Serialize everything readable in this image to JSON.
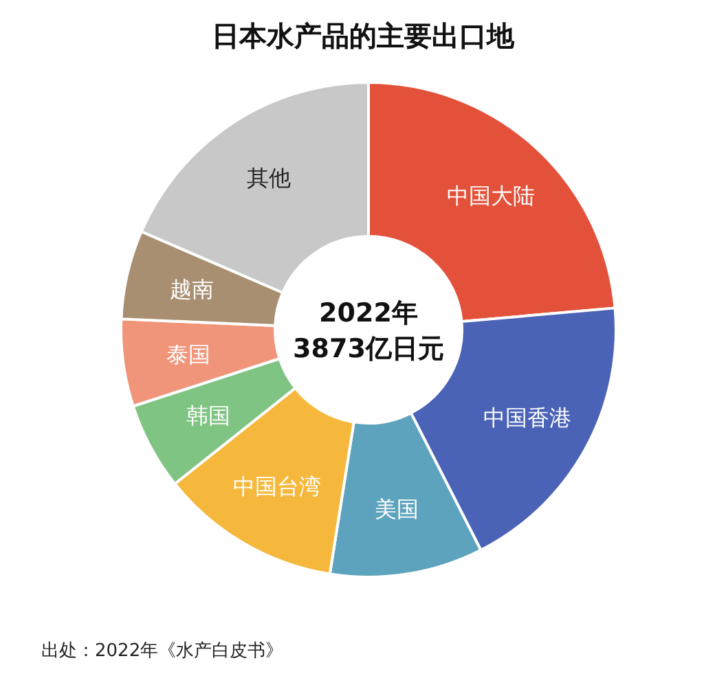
{
  "chart_data": {
    "type": "donut",
    "title": "日本水产品的主要出口地",
    "categories": [
      "中国大陆",
      "中国香港",
      "美国",
      "中国台湾",
      "韩国",
      "泰国",
      "越南",
      "其他"
    ],
    "values": [
      23.6,
      18.9,
      10,
      11.8,
      5.7,
      5.7,
      5.8,
      18.5
    ],
    "colors": [
      "#e4513a",
      "#4a63b6",
      "#5ea3bd",
      "#f5b83d",
      "#7fc483",
      "#f0957a",
      "#a98f72",
      "#c8c8c8"
    ],
    "annotations": [
      "2022年",
      "3873亿日元",
      "出处：2022年《水产白皮书》"
    ]
  }
}
